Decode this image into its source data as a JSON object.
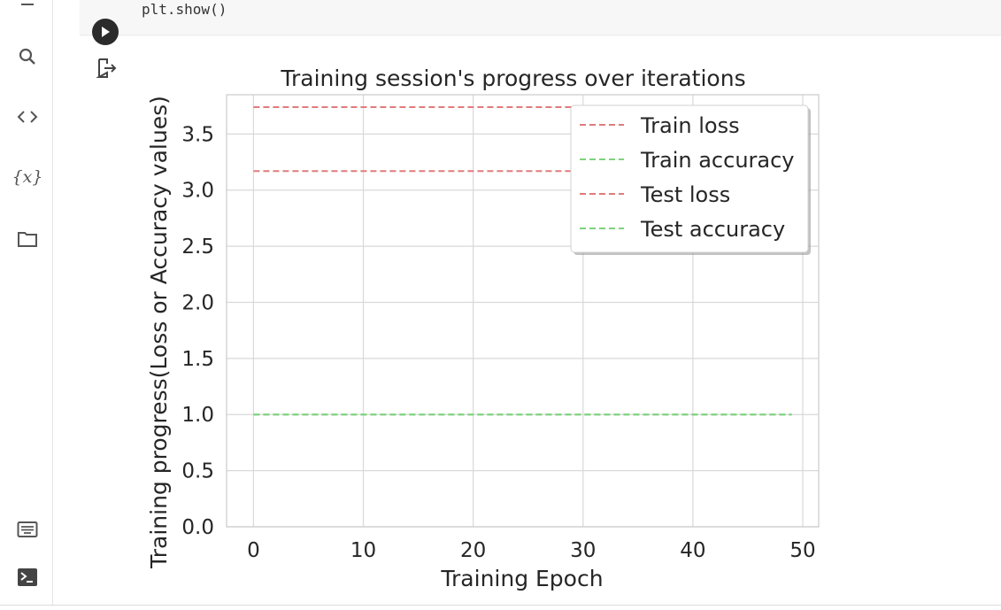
{
  "sidebar": {
    "icons": [
      "menu-icon",
      "search-icon",
      "code-snippets-icon",
      "variables-icon",
      "files-icon",
      "command-palette-icon",
      "terminal-icon"
    ],
    "variables_glyph": "{x}"
  },
  "cell": {
    "code_line": "plt.show()",
    "run_icon": "play-icon",
    "output_icon": "output-redirect-icon"
  },
  "colors": {
    "train_loss": "#e07b7b",
    "train_accuracy": "#7fd27f",
    "test_loss": "#e07b7b",
    "test_accuracy": "#7fd27f",
    "grid": "#d9d9d9",
    "axes_border": "#cccccc"
  },
  "chart_data": {
    "type": "line",
    "title": "Training session's progress over iterations",
    "xlabel": "Training Epoch",
    "ylabel": "Training progress(Loss or Accuracy values)",
    "xlim": [
      -2.45,
      51.45
    ],
    "ylim": [
      0,
      3.85
    ],
    "xticks": [
      0,
      10,
      20,
      30,
      40,
      50
    ],
    "yticks": [
      0.0,
      0.5,
      1.0,
      1.5,
      2.0,
      2.5,
      3.0,
      3.5
    ],
    "ytick_labels": [
      "0.0",
      "0.5",
      "1.0",
      "1.5",
      "2.0",
      "2.5",
      "3.0",
      "3.5"
    ],
    "grid": true,
    "legend_position": "top-right",
    "line_style": "dashed",
    "series": [
      {
        "name": "Train loss",
        "x": [
          0,
          49
        ],
        "y": [
          3.74,
          3.74
        ]
      },
      {
        "name": "Train accuracy",
        "x": [
          0,
          49
        ],
        "y": [
          1.0,
          1.0
        ]
      },
      {
        "name": "Test loss",
        "x": [
          0,
          49
        ],
        "y": [
          3.17,
          3.17
        ]
      },
      {
        "name": "Test accuracy",
        "x": [
          0,
          49
        ],
        "y": [
          1.0,
          1.0
        ]
      }
    ]
  }
}
